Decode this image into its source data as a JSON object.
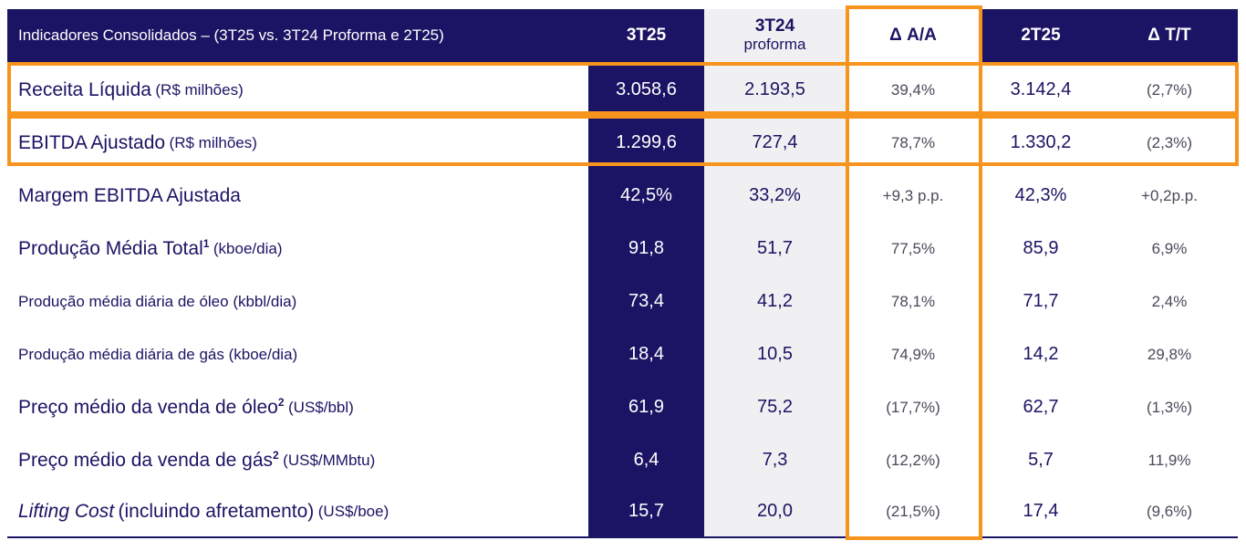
{
  "table": {
    "header": {
      "title": "Indicadores Consolidados – (3T25 vs. 3T24 Proforma e 2T25)",
      "col_3t25": "3T25",
      "col_3t24": "3T24",
      "col_3t24_sub": "proforma",
      "col_aa": "Δ A/A",
      "col_2t25": "2T25",
      "col_tt": "Δ T/T"
    },
    "rows": [
      {
        "label": "Receita Líquida",
        "unit": "(R$ milhões)",
        "v3t25": "3.058,6",
        "v3t24": "2.193,5",
        "aa": "39,4%",
        "v2t25": "3.142,4",
        "tt": "(2,7%)"
      },
      {
        "label": "EBITDA Ajustado",
        "unit": "(R$ milhões)",
        "v3t25": "1.299,6",
        "v3t24": "727,4",
        "aa": "78,7%",
        "v2t25": "1.330,2",
        "tt": "(2,3%)"
      },
      {
        "label": "Margem EBITDA Ajustada",
        "unit": "",
        "v3t25": "42,5%",
        "v3t24": "33,2%",
        "aa": "+9,3 p.p.",
        "v2t25": "42,3%",
        "tt": "+0,2p.p."
      },
      {
        "label": "Produção Média Total",
        "sup": "1",
        "unit": "(kboe/dia)",
        "v3t25": "91,8",
        "v3t24": "51,7",
        "aa": "77,5%",
        "v2t25": "85,9",
        "tt": "6,9%"
      },
      {
        "label": "Produção média diária de óleo (kbbl/dia)",
        "unit": "",
        "v3t25": "73,4",
        "v3t24": "41,2",
        "aa": "78,1%",
        "v2t25": "71,7",
        "tt": "2,4%"
      },
      {
        "label": "Produção média diária de gás (kboe/dia)",
        "unit": "",
        "v3t25": "18,4",
        "v3t24": "10,5",
        "aa": "74,9%",
        "v2t25": "14,2",
        "tt": "29,8%"
      },
      {
        "label": "Preço médio da venda de óleo",
        "sup": "2",
        "unit": "(US$/bbl)",
        "v3t25": "61,9",
        "v3t24": "75,2",
        "aa": "(17,7%)",
        "v2t25": "62,7",
        "tt": "(1,3%)"
      },
      {
        "label": "Preço médio da venda de gás",
        "sup": "2",
        "unit": "(US$/MMbtu)",
        "v3t25": "6,4",
        "v3t24": "7,3",
        "aa": "(12,2%)",
        "v2t25": "5,7",
        "tt": "11,9%"
      },
      {
        "label": "Lifting Cost",
        "label_rest": "(incluindo afretamento)",
        "unit": "(US$/boe)",
        "v3t25": "15,7",
        "v3t24": "20,0",
        "aa": "(21,5%)",
        "v2t25": "17,4",
        "tt": "(9,6%)"
      }
    ]
  },
  "colors": {
    "navy": "#1b1464",
    "light_gray": "#f0f0f2",
    "highlight_orange": "#f7941d"
  }
}
